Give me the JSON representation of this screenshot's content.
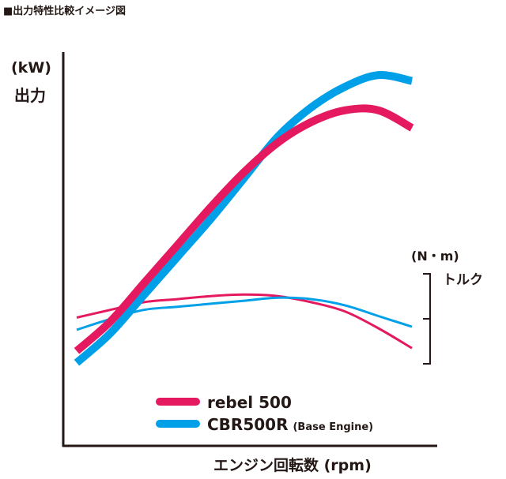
{
  "chart_data": {
    "type": "line",
    "title": "■出力特性比較イメージ図",
    "xlabel": "エンジン回転数 (rpm)",
    "ylabel_left_unit": "(kW)",
    "ylabel_left": "出力",
    "ylabel_right_unit": "(N・m)",
    "ylabel_right": "トルク",
    "grid": false,
    "legend_position": "bottom-right",
    "x": [
      0,
      10,
      20,
      30,
      40,
      50,
      60,
      70,
      80,
      90,
      100
    ],
    "series": [
      {
        "name": "rebel 500",
        "color": "#e5195f",
        "measure": "output",
        "values": [
          10,
          20,
          33,
          46,
          59,
          71,
          81,
          88,
          92,
          92,
          86
        ]
      },
      {
        "name": "CBR500R",
        "name_suffix": "(Base Engine)",
        "color": "#00a0e9",
        "measure": "output",
        "values": [
          6,
          16,
          29,
          42,
          55,
          69,
          83,
          93,
          100,
          104,
          102
        ]
      },
      {
        "name": "rebel 500",
        "color": "#e5195f",
        "measure": "torque",
        "values": [
          40,
          45,
          50,
          52,
          54,
          55,
          54,
          50,
          44,
          33,
          20
        ]
      },
      {
        "name": "CBR500R",
        "color": "#00a0e9",
        "measure": "torque",
        "values": [
          32,
          39,
          45,
          47,
          49,
          51,
          53,
          52,
          48,
          41,
          34
        ]
      }
    ]
  }
}
